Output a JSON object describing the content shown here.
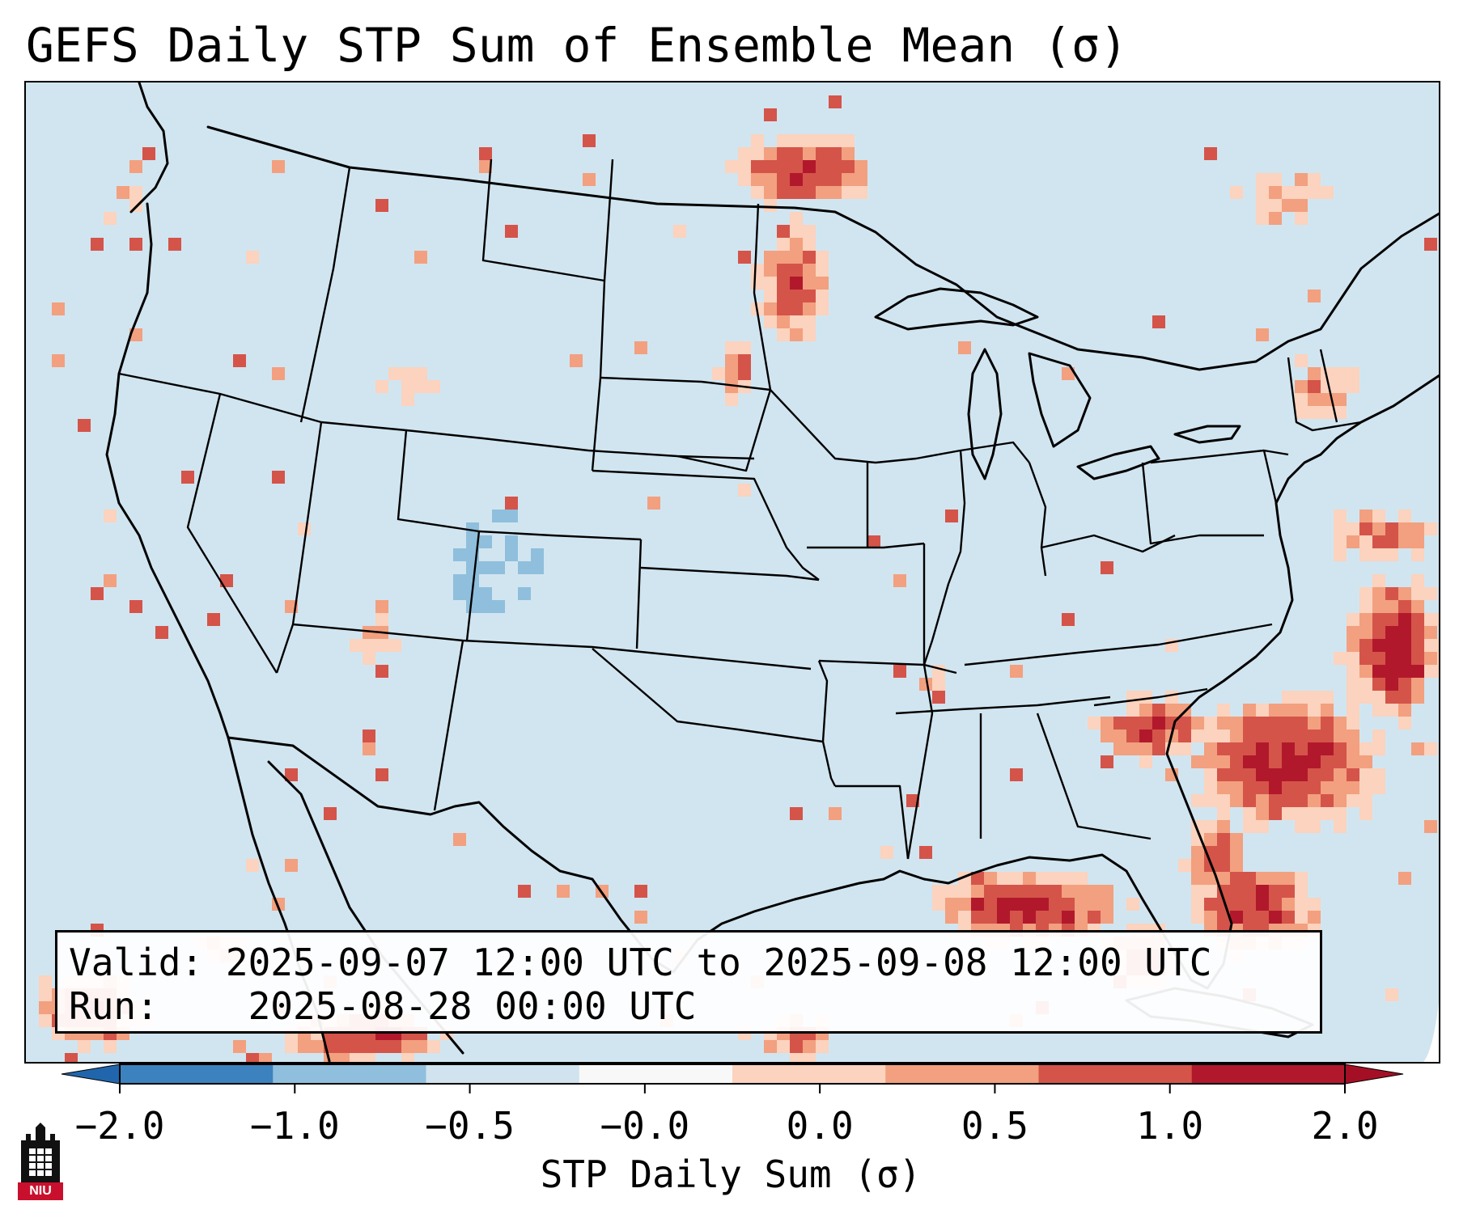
{
  "title": "GEFS Daily STP Sum of Ensemble Mean (σ)",
  "info": {
    "valid_label": "Valid:",
    "valid_value": "2025-09-07 12:00 UTC to 2025-09-08 12:00 UTC",
    "run_label": "Run:",
    "run_value": "2025-08-28 00:00 UTC"
  },
  "colorbar": {
    "label": "STP Daily Sum (σ)",
    "ticks": [
      "−2.0",
      "−1.0",
      "−0.5",
      "−0.0",
      "0.0",
      "0.5",
      "1.0",
      "2.0"
    ],
    "bin_colors": [
      "#3b82bf",
      "#8fbfdc",
      "#d0e3ee",
      "#f8f8f8",
      "#fbd3be",
      "#f2a07f",
      "#d4544a",
      "#b2182b"
    ],
    "under_color": "#2166ac",
    "over_color": "#a50f25"
  },
  "map": {
    "background_color": "#d1e5f0",
    "outside_domain_color": "#ffffff",
    "regions_of_enhanced_stp": [
      "Minnesota / Manitoba",
      "South Dakota / Nebraska border",
      "Carolinas",
      "Gulf of Mexico south of Louisiana",
      "Florida",
      "Western Atlantic off the Southeast coast",
      "Bahamas"
    ]
  },
  "logo": {
    "text": "NIU",
    "name": "Northern Illinois University"
  }
}
